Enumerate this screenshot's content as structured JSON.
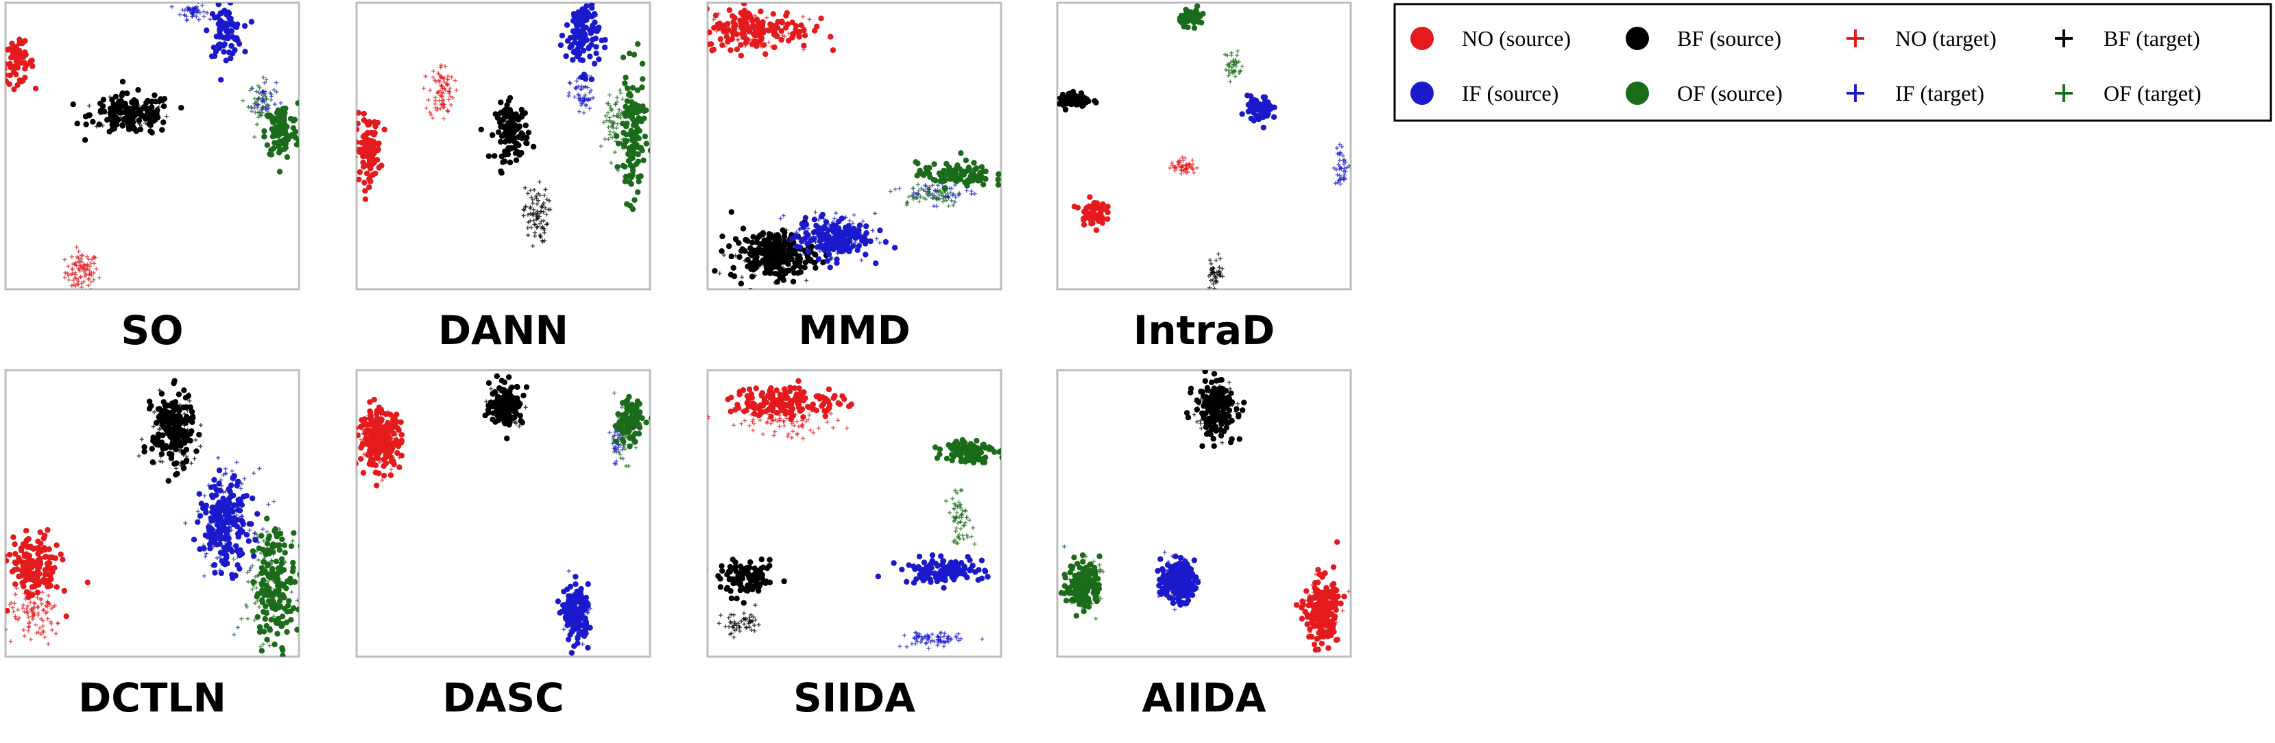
{
  "chart_data": {
    "type": "scatter",
    "layout": "2x4 grid of t-SNE panels with shared legend at top-right",
    "axes": "hidden",
    "grid": false,
    "legend_placement": "top-right",
    "legend": [
      {
        "label": "NO (source)",
        "marker": "dot",
        "color": "#e41a1c"
      },
      {
        "label": "BF (source)",
        "marker": "dot",
        "color": "#000000"
      },
      {
        "label": "NO (target)",
        "marker": "plus",
        "color": "#e41a1c"
      },
      {
        "label": "BF (target)",
        "marker": "plus",
        "color": "#000000"
      },
      {
        "label": "IF (source)",
        "marker": "dot",
        "color": "#1a1acc"
      },
      {
        "label": "OF (source)",
        "marker": "dot",
        "color": "#1a6b1a"
      },
      {
        "label": "IF (target)",
        "marker": "plus",
        "color": "#1a1acc"
      },
      {
        "label": "OF (target)",
        "marker": "plus",
        "color": "#1a6b1a"
      }
    ],
    "classes": {
      "NO": "#e41a1c",
      "BF": "#000000",
      "IF": "#1a1acc",
      "OF": "#1a6b1a"
    },
    "panels": [
      {
        "title": "SO",
        "clusters": [
          {
            "cls": "NO",
            "domain": "source",
            "cx": 0.04,
            "cy": 0.79,
            "sx": 0.04,
            "sy": 0.05,
            "n": 60
          },
          {
            "cls": "NO",
            "domain": "target",
            "cx": 0.26,
            "cy": 0.06,
            "sx": 0.04,
            "sy": 0.05,
            "n": 90
          },
          {
            "cls": "BF",
            "domain": "source",
            "cx": 0.43,
            "cy": 0.61,
            "sx": 0.1,
            "sy": 0.05,
            "n": 150
          },
          {
            "cls": "BF",
            "domain": "target",
            "cx": 0.43,
            "cy": 0.61,
            "sx": 0.09,
            "sy": 0.04,
            "n": 60
          },
          {
            "cls": "IF",
            "domain": "source",
            "cx": 0.75,
            "cy": 0.9,
            "sx": 0.04,
            "sy": 0.06,
            "n": 80
          },
          {
            "cls": "IF",
            "domain": "target",
            "cx": 0.64,
            "cy": 0.97,
            "sx": 0.03,
            "sy": 0.02,
            "n": 50
          },
          {
            "cls": "IF",
            "domain": "target",
            "cx": 0.88,
            "cy": 0.66,
            "sx": 0.03,
            "sy": 0.05,
            "n": 40
          },
          {
            "cls": "OF",
            "domain": "source",
            "cx": 0.94,
            "cy": 0.55,
            "sx": 0.04,
            "sy": 0.07,
            "n": 100
          },
          {
            "cls": "OF",
            "domain": "target",
            "cx": 0.87,
            "cy": 0.65,
            "sx": 0.03,
            "sy": 0.05,
            "n": 40
          }
        ]
      },
      {
        "title": "DANN",
        "clusters": [
          {
            "cls": "NO",
            "domain": "source",
            "cx": 0.04,
            "cy": 0.49,
            "sx": 0.03,
            "sy": 0.08,
            "n": 100
          },
          {
            "cls": "NO",
            "domain": "target",
            "cx": 0.29,
            "cy": 0.69,
            "sx": 0.03,
            "sy": 0.07,
            "n": 80
          },
          {
            "cls": "BF",
            "domain": "source",
            "cx": 0.53,
            "cy": 0.55,
            "sx": 0.04,
            "sy": 0.07,
            "n": 120
          },
          {
            "cls": "BF",
            "domain": "target",
            "cx": 0.61,
            "cy": 0.26,
            "sx": 0.03,
            "sy": 0.07,
            "n": 80
          },
          {
            "cls": "IF",
            "domain": "source",
            "cx": 0.77,
            "cy": 0.89,
            "sx": 0.04,
            "sy": 0.09,
            "n": 120
          },
          {
            "cls": "IF",
            "domain": "target",
            "cx": 0.77,
            "cy": 0.67,
            "sx": 0.03,
            "sy": 0.05,
            "n": 50
          },
          {
            "cls": "OF",
            "domain": "source",
            "cx": 0.94,
            "cy": 0.53,
            "sx": 0.03,
            "sy": 0.16,
            "n": 130
          },
          {
            "cls": "OF",
            "domain": "target",
            "cx": 0.88,
            "cy": 0.58,
            "sx": 0.03,
            "sy": 0.09,
            "n": 60
          }
        ]
      },
      {
        "title": "MMD",
        "clusters": [
          {
            "cls": "NO",
            "domain": "source",
            "cx": 0.17,
            "cy": 0.91,
            "sx": 0.13,
            "sy": 0.05,
            "n": 150
          },
          {
            "cls": "NO",
            "domain": "target",
            "cx": 0.17,
            "cy": 0.9,
            "sx": 0.12,
            "sy": 0.05,
            "n": 60
          },
          {
            "cls": "BF",
            "domain": "source",
            "cx": 0.22,
            "cy": 0.12,
            "sx": 0.1,
            "sy": 0.06,
            "n": 220
          },
          {
            "cls": "BF",
            "domain": "target",
            "cx": 0.22,
            "cy": 0.12,
            "sx": 0.1,
            "sy": 0.06,
            "n": 80
          },
          {
            "cls": "IF",
            "domain": "source",
            "cx": 0.43,
            "cy": 0.18,
            "sx": 0.09,
            "sy": 0.05,
            "n": 160
          },
          {
            "cls": "IF",
            "domain": "target",
            "cx": 0.43,
            "cy": 0.18,
            "sx": 0.1,
            "sy": 0.06,
            "n": 100
          },
          {
            "cls": "IF",
            "domain": "target",
            "cx": 0.8,
            "cy": 0.34,
            "sx": 0.08,
            "sy": 0.03,
            "n": 50
          },
          {
            "cls": "OF",
            "domain": "source",
            "cx": 0.84,
            "cy": 0.4,
            "sx": 0.09,
            "sy": 0.03,
            "n": 90
          },
          {
            "cls": "OF",
            "domain": "target",
            "cx": 0.75,
            "cy": 0.33,
            "sx": 0.09,
            "sy": 0.03,
            "n": 50
          }
        ]
      },
      {
        "title": "IntraD",
        "clusters": [
          {
            "cls": "NO",
            "domain": "source",
            "cx": 0.12,
            "cy": 0.27,
            "sx": 0.03,
            "sy": 0.03,
            "n": 70
          },
          {
            "cls": "NO",
            "domain": "target",
            "cx": 0.43,
            "cy": 0.43,
            "sx": 0.03,
            "sy": 0.02,
            "n": 50
          },
          {
            "cls": "BF",
            "domain": "source",
            "cx": 0.06,
            "cy": 0.66,
            "sx": 0.04,
            "sy": 0.02,
            "n": 70
          },
          {
            "cls": "BF",
            "domain": "target",
            "cx": 0.54,
            "cy": 0.06,
            "sx": 0.02,
            "sy": 0.04,
            "n": 40
          },
          {
            "cls": "IF",
            "domain": "source",
            "cx": 0.69,
            "cy": 0.63,
            "sx": 0.03,
            "sy": 0.03,
            "n": 70
          },
          {
            "cls": "IF",
            "domain": "target",
            "cx": 0.97,
            "cy": 0.43,
            "sx": 0.02,
            "sy": 0.05,
            "n": 40
          },
          {
            "cls": "OF",
            "domain": "source",
            "cx": 0.46,
            "cy": 0.95,
            "sx": 0.03,
            "sy": 0.02,
            "n": 60
          },
          {
            "cls": "OF",
            "domain": "target",
            "cx": 0.6,
            "cy": 0.78,
            "sx": 0.02,
            "sy": 0.04,
            "n": 40
          }
        ]
      },
      {
        "title": "DCTLN",
        "clusters": [
          {
            "cls": "NO",
            "domain": "source",
            "cx": 0.1,
            "cy": 0.31,
            "sx": 0.06,
            "sy": 0.08,
            "n": 150
          },
          {
            "cls": "NO",
            "domain": "target",
            "cx": 0.1,
            "cy": 0.14,
            "sx": 0.07,
            "sy": 0.07,
            "n": 100
          },
          {
            "cls": "BF",
            "domain": "source",
            "cx": 0.57,
            "cy": 0.79,
            "sx": 0.05,
            "sy": 0.09,
            "n": 180
          },
          {
            "cls": "BF",
            "domain": "target",
            "cx": 0.57,
            "cy": 0.78,
            "sx": 0.06,
            "sy": 0.1,
            "n": 80
          },
          {
            "cls": "IF",
            "domain": "source",
            "cx": 0.75,
            "cy": 0.46,
            "sx": 0.06,
            "sy": 0.11,
            "n": 180
          },
          {
            "cls": "IF",
            "domain": "target",
            "cx": 0.75,
            "cy": 0.48,
            "sx": 0.07,
            "sy": 0.12,
            "n": 100
          },
          {
            "cls": "OF",
            "domain": "source",
            "cx": 0.92,
            "cy": 0.25,
            "sx": 0.05,
            "sy": 0.14,
            "n": 160
          },
          {
            "cls": "OF",
            "domain": "target",
            "cx": 0.88,
            "cy": 0.27,
            "sx": 0.06,
            "sy": 0.14,
            "n": 90
          }
        ]
      },
      {
        "title": "DASC",
        "clusters": [
          {
            "cls": "NO",
            "domain": "source",
            "cx": 0.08,
            "cy": 0.76,
            "sx": 0.05,
            "sy": 0.07,
            "n": 220
          },
          {
            "cls": "NO",
            "domain": "target",
            "cx": 0.08,
            "cy": 0.76,
            "sx": 0.05,
            "sy": 0.07,
            "n": 80
          },
          {
            "cls": "BF",
            "domain": "source",
            "cx": 0.51,
            "cy": 0.88,
            "sx": 0.04,
            "sy": 0.05,
            "n": 140
          },
          {
            "cls": "BF",
            "domain": "target",
            "cx": 0.51,
            "cy": 0.88,
            "sx": 0.04,
            "sy": 0.05,
            "n": 50
          },
          {
            "cls": "IF",
            "domain": "source",
            "cx": 0.75,
            "cy": 0.15,
            "sx": 0.03,
            "sy": 0.07,
            "n": 140
          },
          {
            "cls": "IF",
            "domain": "target",
            "cx": 0.75,
            "cy": 0.15,
            "sx": 0.03,
            "sy": 0.07,
            "n": 60
          },
          {
            "cls": "IF",
            "domain": "target",
            "cx": 0.89,
            "cy": 0.76,
            "sx": 0.02,
            "sy": 0.06,
            "n": 40
          },
          {
            "cls": "OF",
            "domain": "source",
            "cx": 0.93,
            "cy": 0.82,
            "sx": 0.03,
            "sy": 0.05,
            "n": 100
          },
          {
            "cls": "OF",
            "domain": "target",
            "cx": 0.91,
            "cy": 0.78,
            "sx": 0.03,
            "sy": 0.07,
            "n": 50
          }
        ]
      },
      {
        "title": "SIIDA",
        "clusters": [
          {
            "cls": "NO",
            "domain": "source",
            "cx": 0.27,
            "cy": 0.89,
            "sx": 0.14,
            "sy": 0.04,
            "n": 160
          },
          {
            "cls": "NO",
            "domain": "target",
            "cx": 0.25,
            "cy": 0.82,
            "sx": 0.14,
            "sy": 0.04,
            "n": 80
          },
          {
            "cls": "BF",
            "domain": "source",
            "cx": 0.14,
            "cy": 0.27,
            "sx": 0.07,
            "sy": 0.04,
            "n": 100
          },
          {
            "cls": "BF",
            "domain": "target",
            "cx": 0.12,
            "cy": 0.11,
            "sx": 0.05,
            "sy": 0.03,
            "n": 50
          },
          {
            "cls": "IF",
            "domain": "source",
            "cx": 0.8,
            "cy": 0.3,
            "sx": 0.1,
            "sy": 0.03,
            "n": 110
          },
          {
            "cls": "IF",
            "domain": "target",
            "cx": 0.76,
            "cy": 0.06,
            "sx": 0.07,
            "sy": 0.02,
            "n": 70
          },
          {
            "cls": "OF",
            "domain": "source",
            "cx": 0.89,
            "cy": 0.72,
            "sx": 0.06,
            "sy": 0.03,
            "n": 100
          },
          {
            "cls": "OF",
            "domain": "target",
            "cx": 0.86,
            "cy": 0.48,
            "sx": 0.03,
            "sy": 0.06,
            "n": 60
          }
        ]
      },
      {
        "title": "AIIDA",
        "clusters": [
          {
            "cls": "NO",
            "domain": "source",
            "cx": 0.9,
            "cy": 0.16,
            "sx": 0.04,
            "sy": 0.08,
            "n": 200
          },
          {
            "cls": "NO",
            "domain": "target",
            "cx": 0.9,
            "cy": 0.16,
            "sx": 0.04,
            "sy": 0.08,
            "n": 80
          },
          {
            "cls": "BF",
            "domain": "source",
            "cx": 0.54,
            "cy": 0.87,
            "sx": 0.05,
            "sy": 0.07,
            "n": 170
          },
          {
            "cls": "BF",
            "domain": "target",
            "cx": 0.54,
            "cy": 0.87,
            "sx": 0.05,
            "sy": 0.07,
            "n": 60
          },
          {
            "cls": "IF",
            "domain": "source",
            "cx": 0.41,
            "cy": 0.26,
            "sx": 0.04,
            "sy": 0.05,
            "n": 180
          },
          {
            "cls": "IF",
            "domain": "target",
            "cx": 0.41,
            "cy": 0.26,
            "sx": 0.04,
            "sy": 0.05,
            "n": 60
          },
          {
            "cls": "OF",
            "domain": "source",
            "cx": 0.09,
            "cy": 0.25,
            "sx": 0.04,
            "sy": 0.06,
            "n": 140
          },
          {
            "cls": "OF",
            "domain": "target",
            "cx": 0.09,
            "cy": 0.25,
            "sx": 0.04,
            "sy": 0.06,
            "n": 50
          }
        ]
      }
    ]
  }
}
